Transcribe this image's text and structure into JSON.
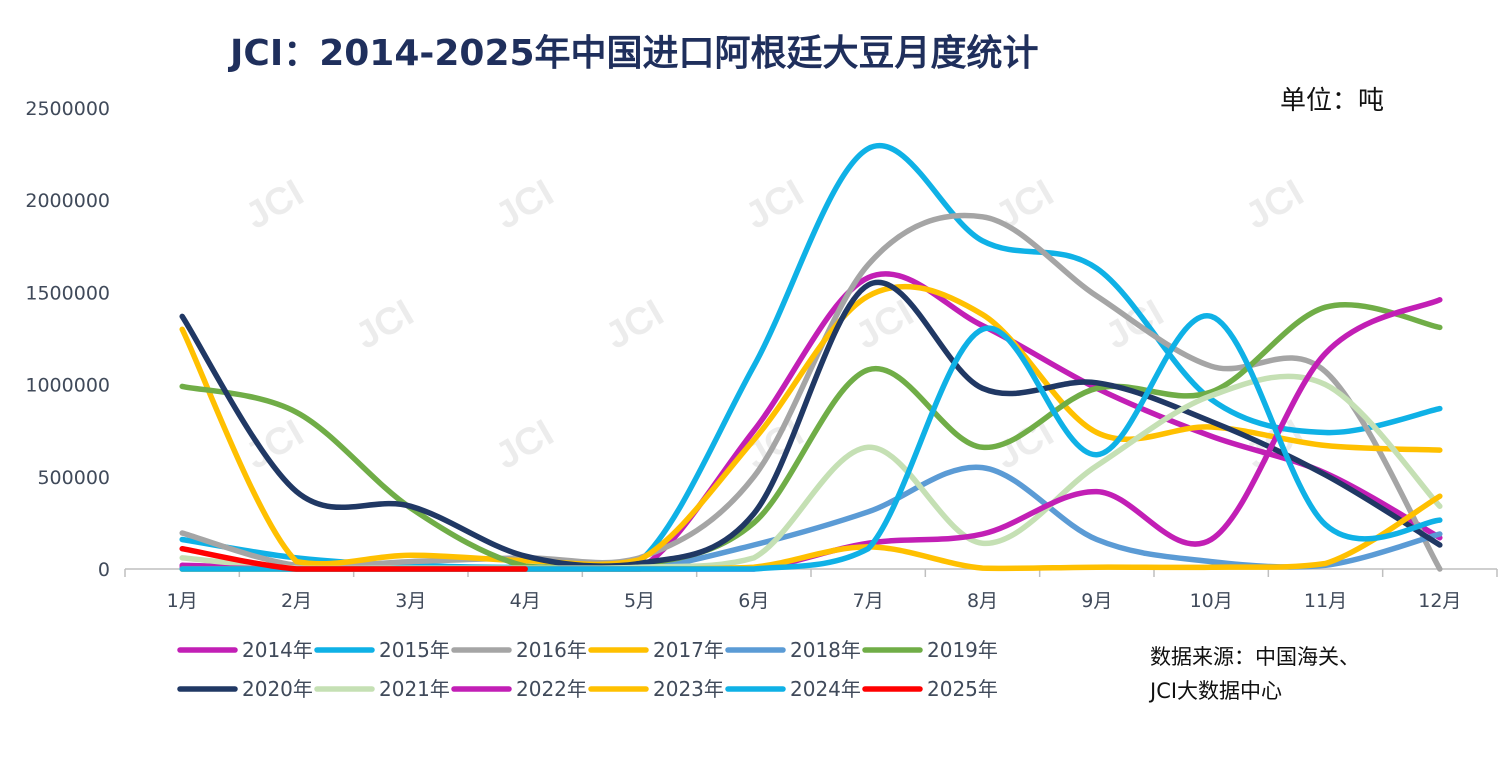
{
  "title": "JCI：2014-2025年中国进口阿根廷大豆月度统计",
  "unit": "单位：吨",
  "source_line1": "数据来源：中国海关、",
  "source_line2": "JCI大数据中心",
  "watermark": "JCI",
  "chart_data": {
    "type": "line",
    "categories": [
      "1月",
      "2月",
      "3月",
      "4月",
      "5月",
      "6月",
      "7月",
      "8月",
      "9月",
      "10月",
      "11月",
      "12月"
    ],
    "ylim": [
      0,
      2500000
    ],
    "yticks": [
      0,
      500000,
      1000000,
      1500000,
      2000000,
      2500000
    ],
    "ytick_labels": [
      "0",
      "500000",
      "1000000",
      "1500000",
      "2000000",
      "2500000"
    ],
    "legend_position": "bottom",
    "series": [
      {
        "name": "2014年",
        "color": "#c21fb5",
        "values": [
          20000,
          5000,
          5000,
          3000,
          0,
          750000,
          1580000,
          1320000,
          980000,
          720000,
          520000,
          170000
        ]
      },
      {
        "name": "2015年",
        "color": "#0fb1e6",
        "values": [
          160000,
          60000,
          20000,
          10000,
          40000,
          1100000,
          2280000,
          1780000,
          1630000,
          920000,
          740000,
          870000
        ]
      },
      {
        "name": "2016年",
        "color": "#a5a5a5",
        "values": [
          195000,
          20000,
          40000,
          60000,
          60000,
          500000,
          1650000,
          1910000,
          1480000,
          1100000,
          1070000,
          0
        ]
      },
      {
        "name": "2017年",
        "color": "#ffc000",
        "values": [
          1300000,
          40000,
          75000,
          45000,
          50000,
          700000,
          1480000,
          1380000,
          740000,
          770000,
          670000,
          645000
        ]
      },
      {
        "name": "2018年",
        "color": "#5b9bd5",
        "values": [
          0,
          0,
          0,
          0,
          0,
          130000,
          310000,
          550000,
          160000,
          40000,
          20000,
          190000
        ]
      },
      {
        "name": "2019年",
        "color": "#70ad47",
        "values": [
          990000,
          850000,
          330000,
          15000,
          20000,
          250000,
          1080000,
          660000,
          980000,
          960000,
          1420000,
          1310000
        ]
      },
      {
        "name": "2020年",
        "color": "#203864",
        "values": [
          1370000,
          420000,
          340000,
          70000,
          30000,
          300000,
          1540000,
          980000,
          1010000,
          800000,
          510000,
          130000
        ]
      },
      {
        "name": "2021年",
        "color": "#c5e0b4",
        "values": [
          60000,
          5000,
          5000,
          5000,
          10000,
          60000,
          660000,
          140000,
          560000,
          940000,
          1000000,
          340000
        ]
      },
      {
        "name": "2022年",
        "color": "#c21fb5",
        "values": [
          10000,
          0,
          0,
          0,
          0,
          0,
          140000,
          190000,
          420000,
          160000,
          1170000,
          1460000
        ]
      },
      {
        "name": "2023年",
        "color": "#ffc000",
        "values": [
          0,
          0,
          0,
          0,
          0,
          10000,
          120000,
          5000,
          10000,
          10000,
          30000,
          395000
        ]
      },
      {
        "name": "2024年",
        "color": "#0fb1e6",
        "values": [
          0,
          0,
          0,
          0,
          0,
          0,
          110000,
          1300000,
          620000,
          1370000,
          240000,
          265000
        ]
      },
      {
        "name": "2025年",
        "color": "#ff0000",
        "values": [
          110000,
          0,
          0,
          0,
          null,
          null,
          null,
          null,
          null,
          null,
          null,
          null
        ]
      }
    ]
  }
}
